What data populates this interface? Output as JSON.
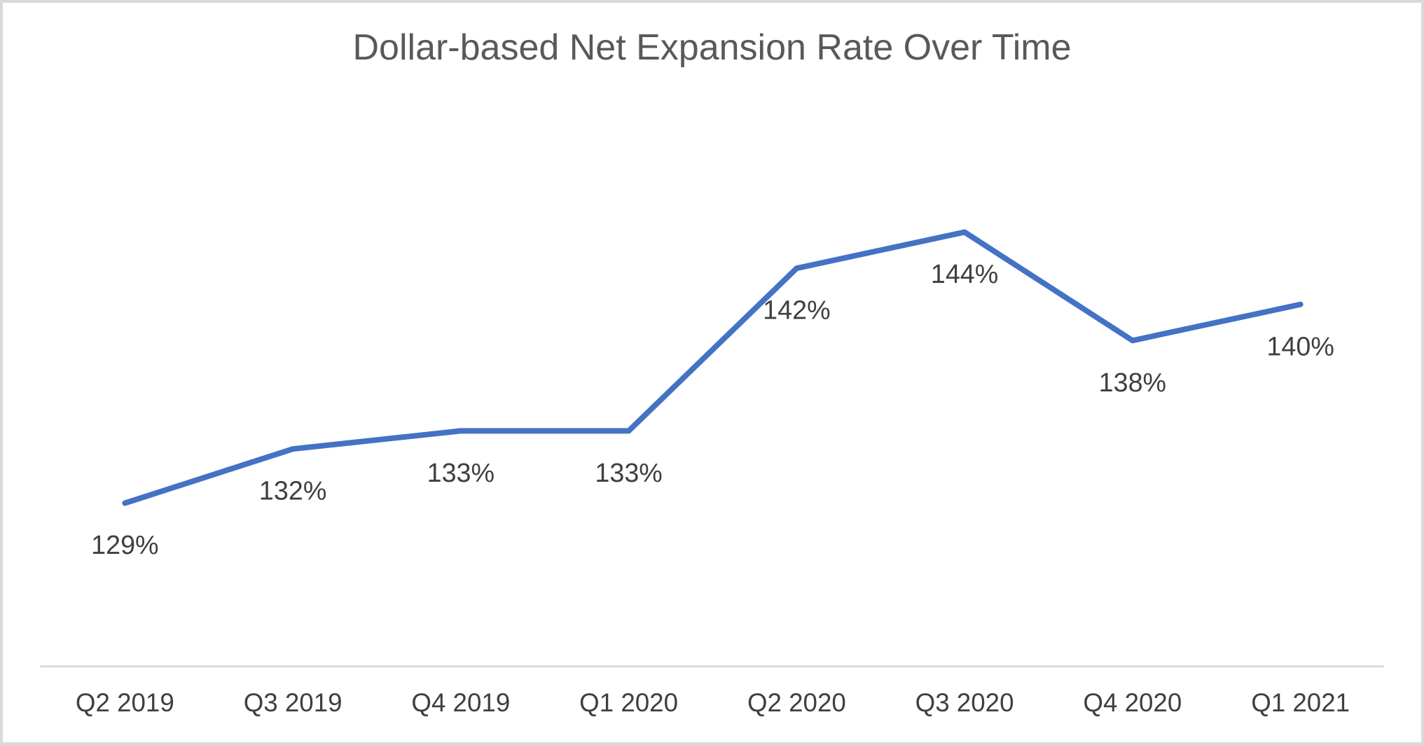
{
  "chart_data": {
    "type": "line",
    "title": "Dollar-based Net Expansion Rate Over Time",
    "categories": [
      "Q2 2019",
      "Q3 2019",
      "Q4 2019",
      "Q1 2020",
      "Q2 2020",
      "Q3 2020",
      "Q4 2020",
      "Q1 2021"
    ],
    "series": [
      {
        "name": "Dollar-based Net Expansion Rate",
        "values": [
          129,
          132,
          133,
          133,
          142,
          144,
          138,
          140
        ],
        "data_labels": [
          "129%",
          "132%",
          "133%",
          "133%",
          "142%",
          "144%",
          "138%",
          "140%"
        ]
      }
    ],
    "unit": "%",
    "ylim": [
      125,
      148
    ],
    "grid": false,
    "legend": false,
    "y_axis_visible": false,
    "x_axis_visible": true,
    "data_label_position": "below",
    "colors": {
      "line": "#4472C4",
      "title_text": "#595959",
      "label_text": "#3f3f3f",
      "axis_line": "#d9d9d9",
      "frame_border": "#d9d9d9",
      "background": "#ffffff"
    }
  }
}
